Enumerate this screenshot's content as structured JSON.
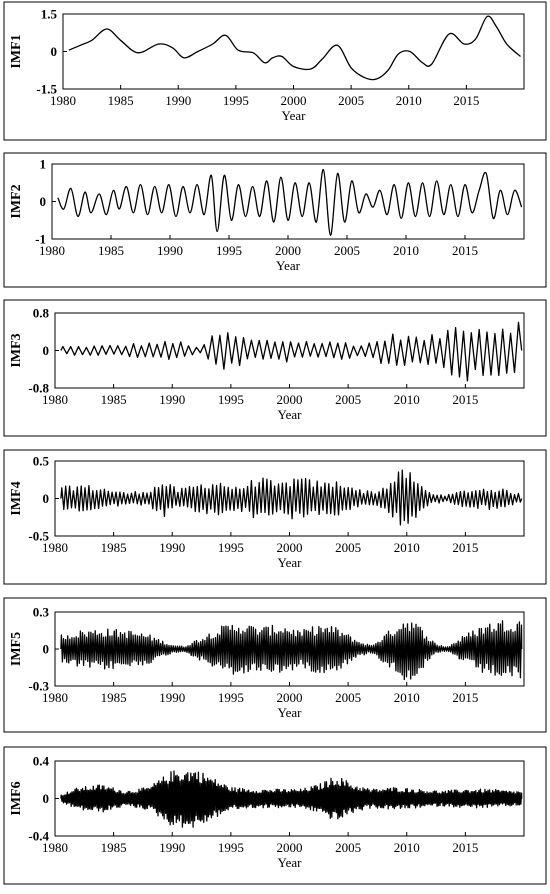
{
  "chart_data": [
    {
      "type": "line",
      "ylabel": "IMF1",
      "xlabel": "Year",
      "xlim": [
        1980,
        2020
      ],
      "ylim": [
        -1.5,
        1.5
      ],
      "yticks": [
        "1.5",
        "0",
        "-1.5"
      ],
      "xticks": [
        "1980",
        "1985",
        "1990",
        "1995",
        "2000",
        "2005",
        "2010",
        "2015"
      ],
      "series": [
        {
          "x": [
            1980.5,
            1981.5,
            1982.5,
            1983.8,
            1985,
            1986.5,
            1988.3,
            1989.5,
            1990.5,
            1991.7,
            1993,
            1994.1,
            1995.2,
            1996.5,
            1997.5,
            1998.2,
            1999,
            2000,
            2001.5,
            2002.5,
            2003.8,
            2005,
            2006.2,
            2007.2,
            2008.2,
            2009.1,
            2010.1,
            2011.2,
            2012,
            2013.5,
            2014.8,
            2015.8,
            2016.8,
            2017.6,
            2018.5,
            2019.7
          ],
          "values": [
            0.05,
            0.25,
            0.45,
            0.9,
            0.45,
            -0.05,
            0.3,
            0.15,
            -0.25,
            0.0,
            0.3,
            0.65,
            0.05,
            -0.05,
            -0.45,
            -0.25,
            -0.2,
            -0.6,
            -0.7,
            -0.3,
            0.25,
            -0.65,
            -1.05,
            -1.1,
            -0.75,
            -0.1,
            0.0,
            -0.45,
            -0.5,
            0.7,
            0.3,
            0.5,
            1.4,
            1.0,
            0.3,
            -0.2
          ]
        }
      ]
    },
    {
      "type": "line",
      "ylabel": "IMF2",
      "xlabel": "Year",
      "xlim": [
        1980,
        2020
      ],
      "ylim": [
        -1,
        1
      ],
      "yticks": [
        "1",
        "0",
        "-1"
      ],
      "xticks": [
        "1980",
        "1985",
        "1990",
        "1995",
        "2000",
        "2005",
        "2010",
        "2015"
      ],
      "series": [
        {
          "x": [
            1980.5,
            1981,
            1981.6,
            1982.2,
            1982.8,
            1983.3,
            1984,
            1984.6,
            1985.2,
            1985.7,
            1986.3,
            1986.9,
            1987.5,
            1988.1,
            1988.7,
            1989.3,
            1989.9,
            1990.5,
            1991.1,
            1991.7,
            1992.3,
            1992.9,
            1993.5,
            1994,
            1994.6,
            1995.2,
            1995.8,
            1996.4,
            1997,
            1997.6,
            1998.2,
            1998.8,
            1999.4,
            2000,
            2000.6,
            2001.2,
            2001.8,
            2002.4,
            2003,
            2003.6,
            2004.2,
            2004.8,
            2005.4,
            2006,
            2006.6,
            2007.2,
            2007.8,
            2008.4,
            2009,
            2009.6,
            2010.2,
            2010.8,
            2011.4,
            2012,
            2012.6,
            2013.2,
            2013.8,
            2014.4,
            2015,
            2015.6,
            2016.2,
            2016.8,
            2017.4,
            2018,
            2018.6,
            2019.2,
            2019.8
          ],
          "values": [
            0.1,
            -0.2,
            0.35,
            -0.4,
            0.25,
            -0.3,
            0.2,
            -0.35,
            0.3,
            -0.2,
            0.4,
            -0.3,
            0.45,
            -0.35,
            0.4,
            -0.3,
            0.45,
            -0.4,
            0.4,
            -0.3,
            0.45,
            -0.35,
            0.7,
            -0.8,
            0.7,
            -0.5,
            0.45,
            -0.4,
            0.4,
            -0.4,
            0.55,
            -0.55,
            0.65,
            -0.5,
            0.5,
            -0.4,
            0.5,
            -0.55,
            0.85,
            -0.9,
            0.75,
            -0.55,
            0.55,
            -0.3,
            0.2,
            -0.15,
            0.3,
            -0.35,
            0.45,
            -0.45,
            0.5,
            -0.4,
            0.5,
            -0.4,
            0.55,
            -0.35,
            0.45,
            -0.4,
            0.45,
            -0.3,
            0.3,
            0.75,
            -0.45,
            0.3,
            -0.35,
            0.3,
            -0.15
          ]
        }
      ]
    },
    {
      "type": "line",
      "ylabel": "IMF3",
      "xlabel": "Year",
      "xlim": [
        1980,
        2020
      ],
      "ylim": [
        -0.8,
        0.8
      ],
      "yticks": [
        "0.8",
        "0",
        "-0.8"
      ],
      "xticks": [
        "1980",
        "1985",
        "1990",
        "1995",
        "2000",
        "2005",
        "2010",
        "2015"
      ],
      "envelope": [
        [
          1980.5,
          0.1
        ],
        [
          1982,
          0.1
        ],
        [
          1985,
          0.12
        ],
        [
          1989,
          0.2
        ],
        [
          1991,
          0.2
        ],
        [
          1992.5,
          0.05
        ],
        [
          1993.7,
          0.45
        ],
        [
          1995,
          0.4
        ],
        [
          1997,
          0.25
        ],
        [
          2000,
          0.25
        ],
        [
          2003,
          0.2
        ],
        [
          2005,
          0.2
        ],
        [
          2006,
          0.12
        ],
        [
          2007.5,
          0.25
        ],
        [
          2008.5,
          0.35
        ],
        [
          2009.5,
          0.4
        ],
        [
          2011,
          0.3
        ],
        [
          2012.5,
          0.35
        ],
        [
          2013.8,
          0.55
        ],
        [
          2014.8,
          0.7
        ],
        [
          2016,
          0.6
        ],
        [
          2017.5,
          0.55
        ],
        [
          2018.5,
          0.65
        ],
        [
          2019.8,
          0.7
        ]
      ],
      "period_years": 0.67
    },
    {
      "type": "line",
      "ylabel": "IMF4",
      "xlabel": "Year",
      "xlim": [
        1980,
        2020
      ],
      "ylim": [
        -0.5,
        0.5
      ],
      "yticks": [
        "0.5",
        "0",
        "-0.5"
      ],
      "xticks": [
        "1980",
        "1985",
        "1990",
        "1995",
        "2000",
        "2005",
        "2010",
        "2015"
      ],
      "envelope": [
        [
          1980.5,
          0.15
        ],
        [
          1982,
          0.2
        ],
        [
          1984,
          0.15
        ],
        [
          1986,
          0.08
        ],
        [
          1988,
          0.12
        ],
        [
          1989.3,
          0.25
        ],
        [
          1990.5,
          0.12
        ],
        [
          1992,
          0.2
        ],
        [
          1994,
          0.25
        ],
        [
          1995.5,
          0.15
        ],
        [
          1997.5,
          0.3
        ],
        [
          1999,
          0.2
        ],
        [
          2000.5,
          0.3
        ],
        [
          2003,
          0.22
        ],
        [
          2004.5,
          0.25
        ],
        [
          2006,
          0.12
        ],
        [
          2007.5,
          0.1
        ],
        [
          2009,
          0.3
        ],
        [
          2009.8,
          0.45
        ],
        [
          2010.8,
          0.25
        ],
        [
          2012,
          0.08
        ],
        [
          2013.5,
          0.05
        ],
        [
          2015,
          0.12
        ],
        [
          2017,
          0.15
        ],
        [
          2018.5,
          0.12
        ],
        [
          2019.8,
          0.06
        ]
      ],
      "period_years": 0.33
    },
    {
      "type": "line",
      "ylabel": "IMF5",
      "xlabel": "Year",
      "xlim": [
        1980,
        2020
      ],
      "ylim": [
        -0.3,
        0.3
      ],
      "yticks": [
        "0.3",
        "0",
        "-0.3"
      ],
      "xticks": [
        "1980",
        "1985",
        "1990",
        "1995",
        "2000",
        "2005",
        "2010",
        "2015"
      ],
      "envelope": [
        [
          1980.5,
          0.12
        ],
        [
          1982,
          0.15
        ],
        [
          1984,
          0.17
        ],
        [
          1986.5,
          0.15
        ],
        [
          1988,
          0.12
        ],
        [
          1989.8,
          0.04
        ],
        [
          1991,
          0.02
        ],
        [
          1992.5,
          0.1
        ],
        [
          1994,
          0.18
        ],
        [
          1995.5,
          0.22
        ],
        [
          1997.5,
          0.18
        ],
        [
          1999.5,
          0.2
        ],
        [
          2001,
          0.15
        ],
        [
          2002.5,
          0.2
        ],
        [
          2004,
          0.18
        ],
        [
          2006,
          0.06
        ],
        [
          2007,
          0.03
        ],
        [
          2008.5,
          0.15
        ],
        [
          2010,
          0.27
        ],
        [
          2011,
          0.2
        ],
        [
          2012.5,
          0.04
        ],
        [
          2013.5,
          0.02
        ],
        [
          2015,
          0.12
        ],
        [
          2016.5,
          0.2
        ],
        [
          2018,
          0.24
        ],
        [
          2019.8,
          0.25
        ]
      ],
      "period_years": 0.18
    },
    {
      "type": "line",
      "ylabel": "IMF6",
      "xlabel": "Year",
      "xlim": [
        1980,
        2020
      ],
      "ylim": [
        -0.4,
        0.4
      ],
      "yticks": [
        "0.4",
        "0",
        "-0.4"
      ],
      "xticks": [
        "1980",
        "1985",
        "1990",
        "1995",
        "2000",
        "2005",
        "2010",
        "2015"
      ],
      "envelope": [
        [
          1980.5,
          0.04
        ],
        [
          1982,
          0.12
        ],
        [
          1984,
          0.15
        ],
        [
          1986,
          0.08
        ],
        [
          1988,
          0.12
        ],
        [
          1990,
          0.3
        ],
        [
          1992,
          0.32
        ],
        [
          1993.5,
          0.22
        ],
        [
          1995,
          0.12
        ],
        [
          1997,
          0.1
        ],
        [
          1999,
          0.1
        ],
        [
          2001,
          0.1
        ],
        [
          2002.5,
          0.15
        ],
        [
          2004,
          0.25
        ],
        [
          2005.5,
          0.15
        ],
        [
          2007,
          0.1
        ],
        [
          2009,
          0.12
        ],
        [
          2011,
          0.1
        ],
        [
          2013,
          0.08
        ],
        [
          2015,
          0.1
        ],
        [
          2017,
          0.1
        ],
        [
          2019,
          0.08
        ],
        [
          2019.8,
          0.08
        ]
      ],
      "period_years": 0.13
    }
  ]
}
